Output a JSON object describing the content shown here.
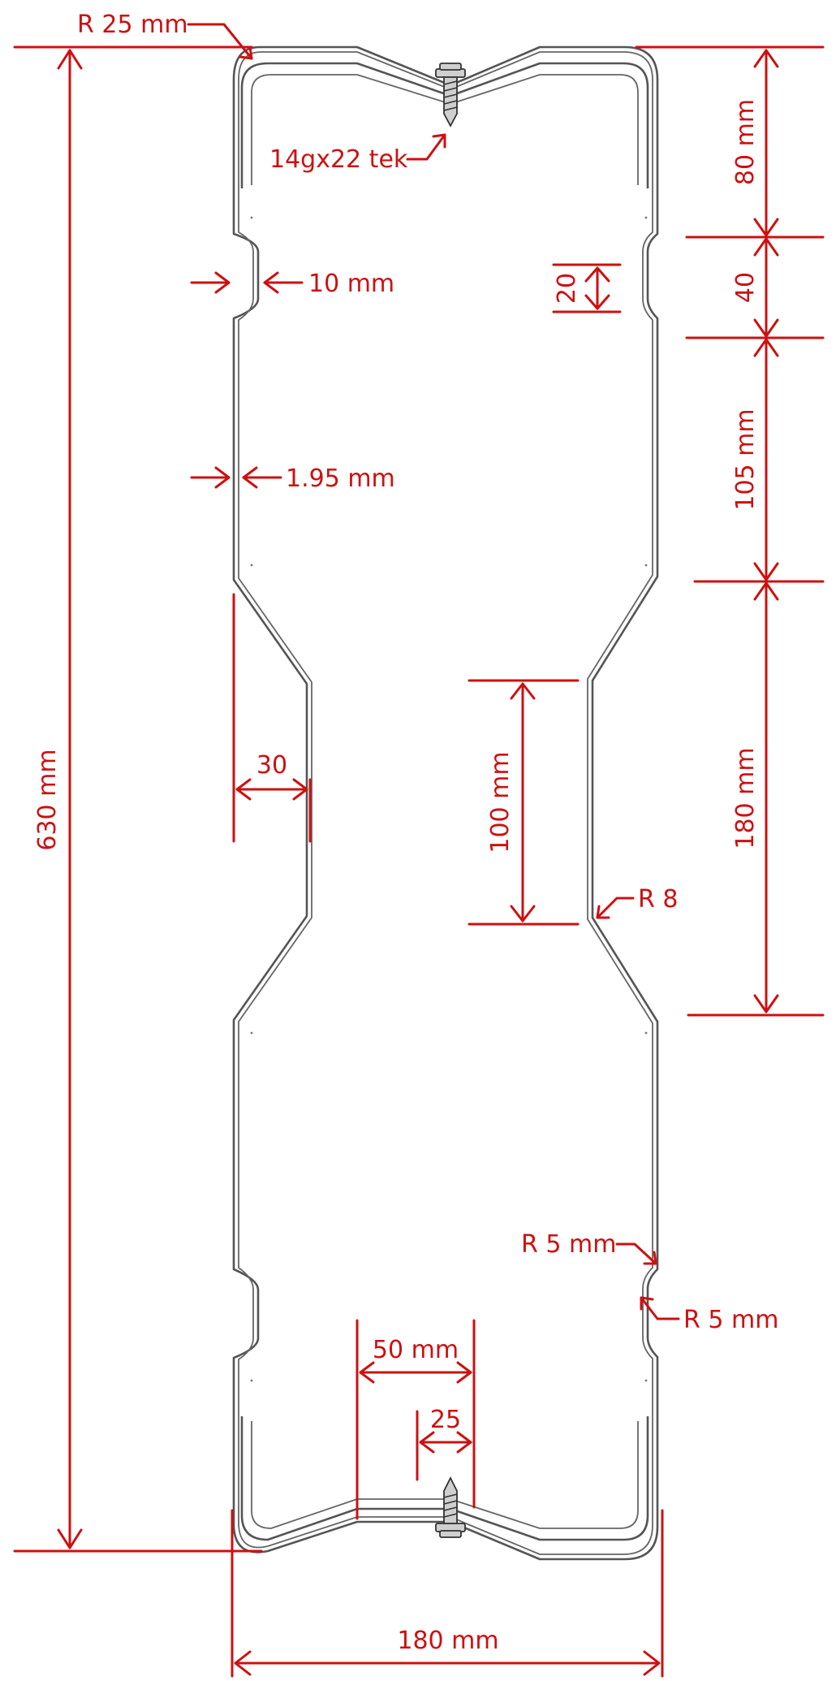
{
  "labels": {
    "r25": "R 25 mm",
    "tek": "14gx22 tek",
    "d80": "80 mm",
    "d10": "10 mm",
    "d20": "20",
    "d40": "40",
    "d105": "105 mm",
    "d195": "1.95 mm",
    "d630": "630 mm",
    "d30": "30",
    "d100": "100 mm",
    "d180v": "180 mm",
    "r8": "R 8",
    "r5a": "R 5 mm",
    "r5b": "R 5 mm",
    "d50": "50 mm",
    "d25": "25",
    "d180h": "180 mm"
  },
  "colors": {
    "dimension": "#cc1111",
    "profile": "#555555"
  }
}
